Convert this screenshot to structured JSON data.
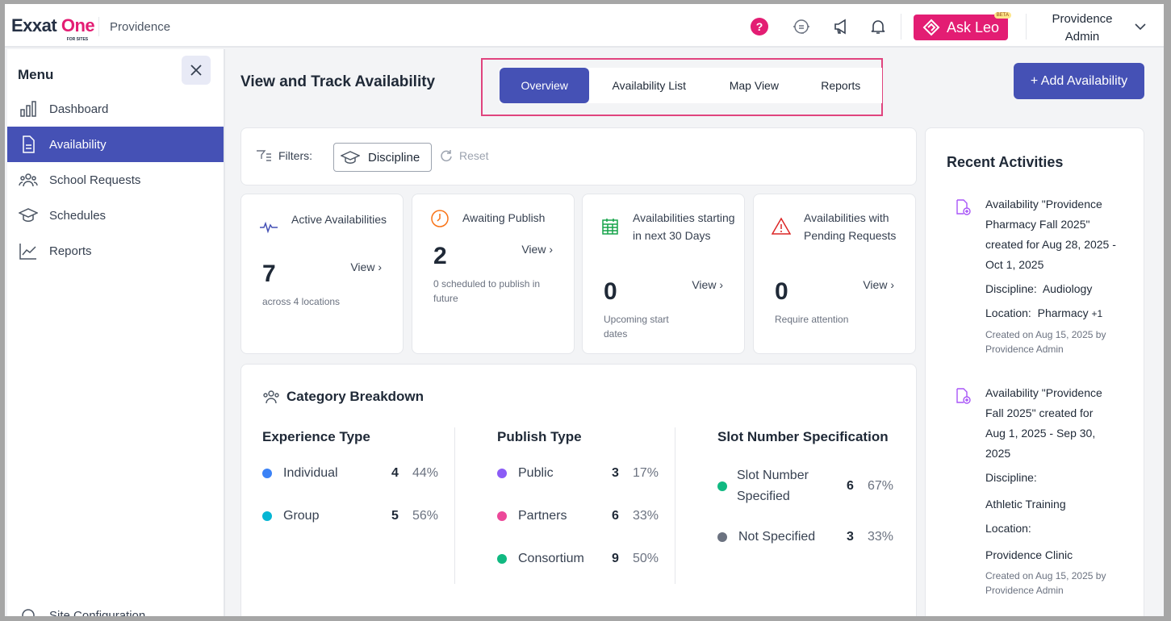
{
  "header": {
    "logo": "Exxat One",
    "logo_sub": "FOR SITES",
    "site": "Providence",
    "ask_leo": "Ask Leo",
    "beta": "BETA",
    "user": "Providence Admin",
    "colors": {
      "brand": "#e31d73",
      "primary": "#4551b5"
    }
  },
  "sidebar": {
    "title": "Menu",
    "items": [
      {
        "label": "Dashboard",
        "icon": "bar-chart-icon"
      },
      {
        "label": "Availability",
        "icon": "document-icon",
        "active": true
      },
      {
        "label": "School Requests",
        "icon": "users-icon"
      },
      {
        "label": "Schedules",
        "icon": "graduation-cap-icon"
      },
      {
        "label": "Reports",
        "icon": "trend-chart-icon"
      }
    ],
    "bottom_label": "Site Configuration"
  },
  "main": {
    "title": "View and Track Availability",
    "tabs": [
      "Overview",
      "Availability List",
      "Map View",
      "Reports"
    ],
    "active_tab": "Overview",
    "add_button": "+ Add Availability",
    "filters": {
      "label": "Filters:",
      "discipline": "Discipline",
      "reset": "Reset"
    },
    "stats": [
      {
        "label": "Active Availabilities",
        "value": "7",
        "view": "View",
        "sub": "across 4 locations"
      },
      {
        "label": "Awaiting Publish",
        "value": "2",
        "view": "View",
        "sub": "0 scheduled to publish in future"
      },
      {
        "label": "Availabilities starting in next 30 Days",
        "value": "0",
        "view": "View",
        "sub": "Upcoming start dates"
      },
      {
        "label": "Availabilities with Pending Requests",
        "value": "0",
        "view": "View",
        "sub": "Require attention"
      }
    ],
    "category": {
      "title": "Category Breakdown",
      "columns": [
        {
          "title": "Experience Type",
          "rows": [
            {
              "label": "Individual",
              "count": "4",
              "pct": "44%",
              "color": "#3b82f6"
            },
            {
              "label": "Group",
              "count": "5",
              "pct": "56%",
              "color": "#06b6d4"
            }
          ]
        },
        {
          "title": "Publish Type",
          "rows": [
            {
              "label": "Public",
              "count": "3",
              "pct": "17%",
              "color": "#8b5cf6"
            },
            {
              "label": "Partners",
              "count": "6",
              "pct": "33%",
              "color": "#ec4899"
            },
            {
              "label": "Consortium",
              "count": "9",
              "pct": "50%",
              "color": "#10b981"
            }
          ]
        },
        {
          "title": "Slot Number Specification",
          "rows": [
            {
              "label": "Slot Number Specified",
              "count": "6",
              "pct": "67%",
              "color": "#10b981"
            },
            {
              "label": "Not Specified",
              "count": "3",
              "pct": "33%",
              "color": "#6b7280"
            }
          ]
        }
      ]
    }
  },
  "recent": {
    "title": "Recent Activities",
    "items": [
      {
        "text": "Availability \"Providence Pharmacy Fall 2025\" created for Aug 28, 2025 - Oct 1, 2025",
        "discipline_label": "Discipline:",
        "discipline": "Audiology",
        "location_label": "Location:",
        "location": "Pharmacy",
        "more": "+1",
        "meta": "Created on Aug 15, 2025 by Providence Admin"
      },
      {
        "text": "Availability \"Providence Fall 2025\" created for Aug 1, 2025 - Sep 30, 2025",
        "discipline_label": "Discipline:",
        "discipline": "Athletic Training",
        "location_label": "Location:",
        "location": "Providence Clinic",
        "meta": "Created on Aug 15, 2025 by Providence Admin"
      }
    ]
  }
}
